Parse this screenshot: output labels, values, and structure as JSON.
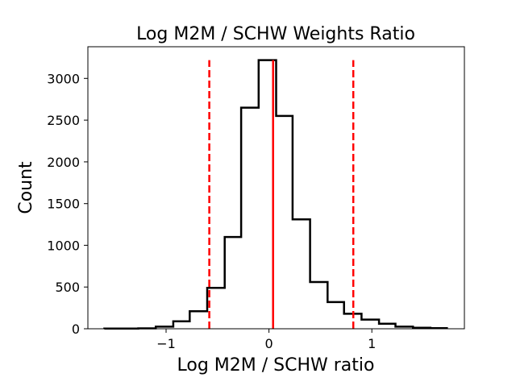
{
  "chart_data": {
    "type": "bar",
    "subtype": "step-histogram",
    "title": "Log M2M / SCHW Weights Ratio",
    "xlabel": "Log M2M / SCHW ratio",
    "ylabel": "Count",
    "xlim": [
      -1.76,
      1.9
    ],
    "ylim": [
      0,
      3380
    ],
    "xticks": [
      {
        "value": -1,
        "label": "−1"
      },
      {
        "value": 0,
        "label": "0"
      },
      {
        "value": 1,
        "label": "1"
      }
    ],
    "yticks": [
      {
        "value": 0,
        "label": "0"
      },
      {
        "value": 500,
        "label": "500"
      },
      {
        "value": 1000,
        "label": "1000"
      },
      {
        "value": 1500,
        "label": "1500"
      },
      {
        "value": 2000,
        "label": "2000"
      },
      {
        "value": 2500,
        "label": "2500"
      },
      {
        "value": 3000,
        "label": "3000"
      }
    ],
    "grid": false,
    "legend": "none",
    "bin_edges": [
      -1.6,
      -1.43,
      -1.27,
      -1.1,
      -0.93,
      -0.77,
      -0.6,
      -0.43,
      -0.27,
      -0.1,
      0.07,
      0.23,
      0.4,
      0.57,
      0.73,
      0.9,
      1.07,
      1.23,
      1.4,
      1.57,
      1.73
    ],
    "values": [
      2,
      3,
      5,
      25,
      90,
      210,
      490,
      1100,
      2650,
      3220,
      2550,
      1310,
      560,
      320,
      180,
      110,
      60,
      25,
      12,
      8
    ],
    "vlines": [
      {
        "name": "lower-bound",
        "x": -0.58,
        "style": "dashed",
        "color": "#ff0000"
      },
      {
        "name": "median",
        "x": 0.04,
        "style": "solid",
        "color": "#ff0000"
      },
      {
        "name": "upper-bound",
        "x": 0.82,
        "style": "dashed",
        "color": "#ff0000"
      }
    ],
    "vline_top": 3220,
    "histogram_color": "#000000"
  }
}
